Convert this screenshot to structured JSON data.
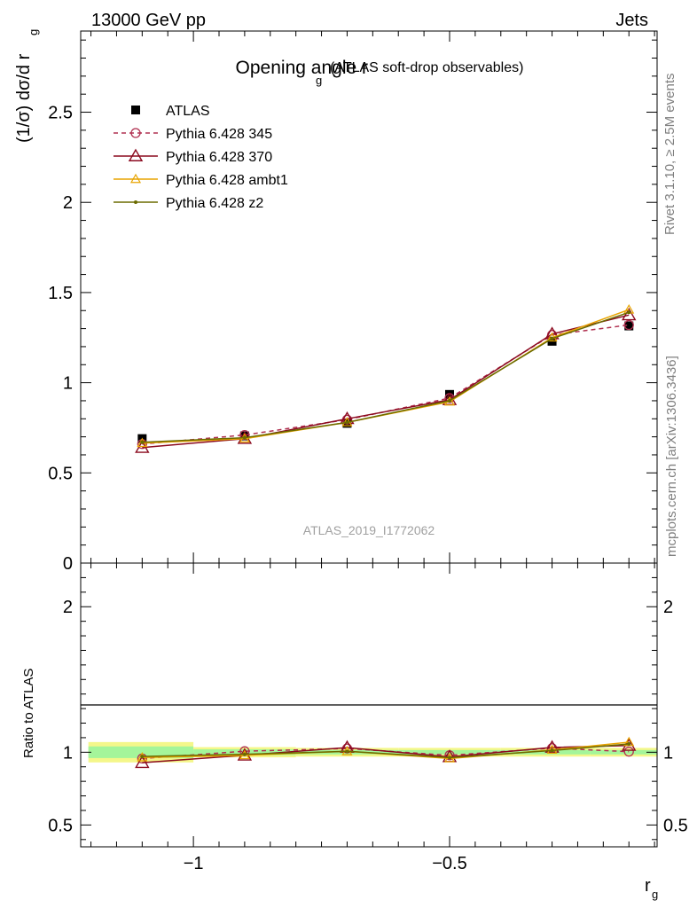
{
  "header": {
    "energy_label": "13000 GeV pp",
    "process_label": "Jets"
  },
  "side_labels": {
    "rivet": "Rivet 3.1.10, ≥ 2.5M events",
    "mcplots": "mcplots.cern.ch [arXiv:1306.3436]"
  },
  "chart_data": [
    {
      "type": "line",
      "title": "Opening angle r",
      "title_subscript": "g",
      "subtitle": "(ATLAS soft-drop observables)",
      "ylabel": "(1/σ) dσ/d r",
      "ylabel_subscript": "g",
      "watermark": "ATLAS_2019_I1772062",
      "xlim": [
        -1.22,
        -0.095
      ],
      "ylim": [
        0,
        2.95
      ],
      "yticks": [
        {
          "v": 0,
          "label": "0"
        },
        {
          "v": 0.5,
          "label": "0.5"
        },
        {
          "v": 1,
          "label": "1"
        },
        {
          "v": 1.5,
          "label": "1.5"
        },
        {
          "v": 2,
          "label": "2"
        },
        {
          "v": 2.5,
          "label": "2.5"
        }
      ],
      "x": [
        -1.1,
        -0.9,
        -0.7,
        -0.5,
        -0.3,
        -0.15
      ],
      "series": [
        {
          "name": "ATLAS",
          "color": "#000000",
          "marker": "square",
          "style": "points",
          "values": [
            0.69,
            0.705,
            0.775,
            0.935,
            1.23,
            1.315
          ]
        },
        {
          "name": "Pythia 6.428 345",
          "color": "#b03050",
          "marker": "circle-open",
          "style": "dashed",
          "values": [
            0.66,
            0.71,
            0.795,
            0.915,
            1.265,
            1.32
          ]
        },
        {
          "name": "Pythia 6.428 370",
          "color": "#8b0a1f",
          "marker": "triangle-open",
          "style": "solid",
          "values": [
            0.64,
            0.69,
            0.8,
            0.905,
            1.27,
            1.375
          ]
        },
        {
          "name": "Pythia 6.428 ambt1",
          "color": "#e8a400",
          "marker": "triangle-open-small",
          "style": "solid",
          "values": [
            0.665,
            0.69,
            0.78,
            0.895,
            1.25,
            1.405
          ]
        },
        {
          "name": "Pythia 6.428 z2",
          "color": "#6b6b00",
          "marker": "dot",
          "style": "solid",
          "values": [
            0.67,
            0.695,
            0.78,
            0.9,
            1.245,
            1.39
          ]
        }
      ]
    },
    {
      "type": "line",
      "ylabel": "Ratio to ATLAS",
      "xlabel": "r",
      "xlabel_subscript": "g",
      "xlim": [
        -1.22,
        -0.095
      ],
      "ylim": [
        0.35,
        2.3
      ],
      "yticks": [
        {
          "v": 0.5,
          "label": "0.5"
        },
        {
          "v": 1,
          "label": "1"
        },
        {
          "v": 2,
          "label": "2"
        }
      ],
      "xticks": [
        {
          "v": -1,
          "label": "−1"
        },
        {
          "v": -0.5,
          "label": "−0.5"
        }
      ],
      "x": [
        -1.1,
        -0.9,
        -0.7,
        -0.5,
        -0.3,
        -0.15
      ],
      "band_yellow": [
        0.07,
        0.035,
        0.03,
        0.03,
        0.03,
        0.03
      ],
      "band_green": [
        0.04,
        0.02,
        0.015,
        0.015,
        0.015,
        0.015
      ],
      "series": [
        {
          "name": "Pythia 6.428 345",
          "color": "#b03050",
          "marker": "circle-open",
          "style": "dashed",
          "values": [
            0.957,
            1.007,
            1.026,
            0.979,
            1.028,
            1.004
          ]
        },
        {
          "name": "Pythia 6.428 370",
          "color": "#8b0a1f",
          "marker": "triangle-open",
          "style": "solid",
          "values": [
            0.928,
            0.979,
            1.032,
            0.968,
            1.033,
            1.046
          ]
        },
        {
          "name": "Pythia 6.428 ambt1",
          "color": "#e8a400",
          "marker": "triangle-open-small",
          "style": "solid",
          "values": [
            0.964,
            0.979,
            1.006,
            0.957,
            1.016,
            1.069
          ]
        },
        {
          "name": "Pythia 6.428 z2",
          "color": "#6b6b00",
          "marker": "dot",
          "style": "solid",
          "values": [
            0.971,
            0.986,
            1.006,
            0.963,
            1.012,
            1.057
          ]
        }
      ]
    }
  ]
}
